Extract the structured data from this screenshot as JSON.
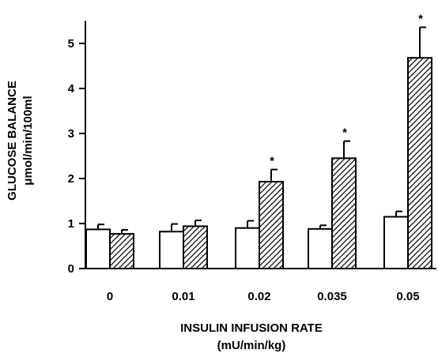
{
  "chart_data": {
    "type": "bar",
    "categories": [
      "0",
      "0.01",
      "0.02",
      "0.035",
      "0.05"
    ],
    "series": [
      {
        "pattern": "open",
        "values": [
          0.87,
          0.82,
          0.9,
          0.88,
          1.15
        ],
        "errors": [
          0.11,
          0.17,
          0.16,
          0.08,
          0.12
        ]
      },
      {
        "pattern": "hatched",
        "values": [
          0.77,
          0.94,
          1.93,
          2.45,
          4.68
        ],
        "errors": [
          0.09,
          0.13,
          0.27,
          0.38,
          0.68
        ]
      }
    ],
    "significance": [
      "",
      "",
      "*",
      "*",
      "*"
    ],
    "ylabel_line1": "GLUCOSE BALANCE",
    "ylabel_line2": "μmol/min/100ml",
    "xlabel_line1": "INSULIN INFUSION RATE",
    "xlabel_line2": "(mU/min/kg)",
    "ylim": [
      0,
      5.5
    ],
    "yticks": [
      0,
      1,
      2,
      3,
      4,
      5
    ],
    "grid": false,
    "legend": "none"
  }
}
